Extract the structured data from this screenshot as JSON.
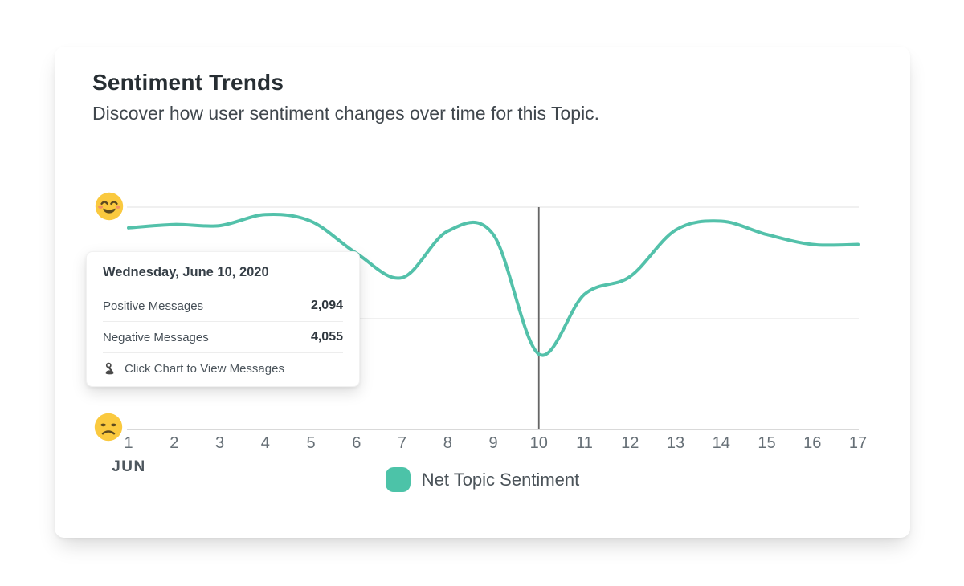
{
  "header": {
    "title": "Sentiment Trends",
    "subtitle": "Discover how user sentiment changes over time for this Topic."
  },
  "legend": {
    "label": "Net Topic Sentiment"
  },
  "tooltip": {
    "date": "Wednesday, June 10, 2020",
    "rows": [
      {
        "label": "Positive Messages",
        "value": "2,094"
      },
      {
        "label": "Negative Messages",
        "value": "4,055"
      }
    ],
    "footer": "Click Chart to View Messages"
  },
  "icons": {
    "positive_axis": "smiling-face-emoji",
    "negative_axis": "sad-face-emoji",
    "tooltip_footer": "tap-click-icon"
  },
  "colors": {
    "line": "#53C1AA",
    "legend_swatch": "#4CC3A8",
    "cursor_line": "#666666",
    "gridline": "#ECECEC",
    "axis_line": "#D9D9D9",
    "emoji_yellow": "#FAC93F",
    "emoji_dark": "#5D4A1F",
    "emoji_cheek": "#EF8B67"
  },
  "chart_data": {
    "type": "line",
    "title": "Net Topic Sentiment over time",
    "month": "JUN",
    "categories": [
      "1",
      "2",
      "3",
      "4",
      "5",
      "6",
      "7",
      "8",
      "9",
      "10",
      "11",
      "12",
      "13",
      "14",
      "15",
      "16",
      "17"
    ],
    "series": [
      {
        "name": "Net Topic Sentiment",
        "values": [
          0.82,
          0.85,
          0.84,
          0.94,
          0.88,
          0.59,
          0.37,
          0.79,
          0.76,
          -0.32,
          0.22,
          0.38,
          0.8,
          0.88,
          0.76,
          0.67,
          0.67
        ]
      }
    ],
    "ylim": [
      -1,
      1
    ],
    "y_axis_labels": {
      "top": "positive (happy emoji)",
      "bottom": "negative (sad emoji)"
    },
    "grid": "horizontal",
    "legend_position": "bottom",
    "highlighted_x": 10,
    "highlighted_point": {
      "date": "Wednesday, June 10, 2020",
      "positive_messages": 2094,
      "negative_messages": 4055,
      "net_sentiment": -0.32
    }
  }
}
